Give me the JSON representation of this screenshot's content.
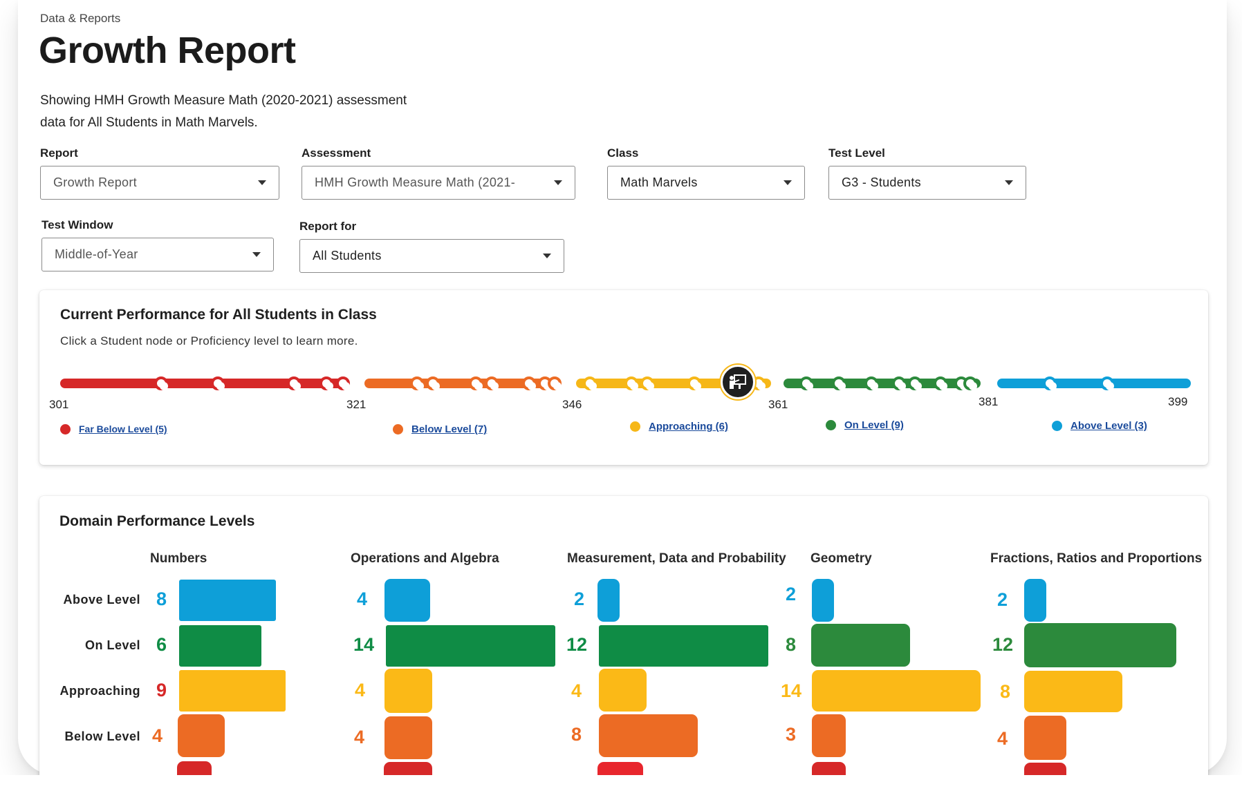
{
  "breadcrumb": "Data & Reports",
  "title": "Growth Report",
  "description": "Showing HMH Growth Measure Math (2020-2021) assessment data for All Students in Math Marvels.",
  "filters": {
    "report": {
      "label": "Report",
      "value": "Growth Report"
    },
    "assessment": {
      "label": "Assessment",
      "value": "HMH Growth Measure Math (2021-"
    },
    "class": {
      "label": "Class",
      "value": "Math Marvels"
    },
    "test_level": {
      "label": "Test Level",
      "value": "G3 -  Students"
    },
    "test_window": {
      "label": "Test Window",
      "value": "Middle-of-Year"
    },
    "report_for": {
      "label": "Report for",
      "value": "All Students"
    }
  },
  "current_performance": {
    "title": "Current Performance for All Students in Class",
    "subtitle": "Click a Student node or Proficiency level to learn more.",
    "ticks": [
      "301",
      "321",
      "346",
      "361",
      "381",
      "399"
    ],
    "levels": [
      {
        "label": "Far Below Level (5)",
        "color": "#d62828"
      },
      {
        "label": "Below Level (7)",
        "color": "#ec6b24"
      },
      {
        "label": "Approaching (6)",
        "color": "#f6b718"
      },
      {
        "label": "On Level (9)",
        "color": "#2c8a3c"
      },
      {
        "label": "Above Level (3)",
        "color": "#0e9fd8"
      }
    ]
  },
  "domain_performance": {
    "title": "Domain Performance Levels",
    "row_labels": [
      "Above Level",
      "On Level",
      "Approaching",
      "Below Level"
    ],
    "domains": [
      {
        "name": "Numbers",
        "counts": [
          "8",
          "6",
          "9",
          "4"
        ]
      },
      {
        "name": "Operations and Algebra",
        "counts": [
          "4",
          "14",
          "4",
          "4"
        ]
      },
      {
        "name": "Measurement, Data and Probability",
        "counts": [
          "2",
          "12",
          "4",
          "8"
        ]
      },
      {
        "name": "Geometry",
        "counts": [
          "2",
          "8",
          "14",
          "3"
        ]
      },
      {
        "name": "Fractions, Ratios and Proportions",
        "counts": [
          "2",
          "12",
          "8",
          "4"
        ]
      }
    ]
  },
  "colors": {
    "above": "#0e9fd8",
    "on": "#0f8c45",
    "approaching": "#fbb917",
    "below": "#ec6b24",
    "far_below": "#d62828"
  }
}
